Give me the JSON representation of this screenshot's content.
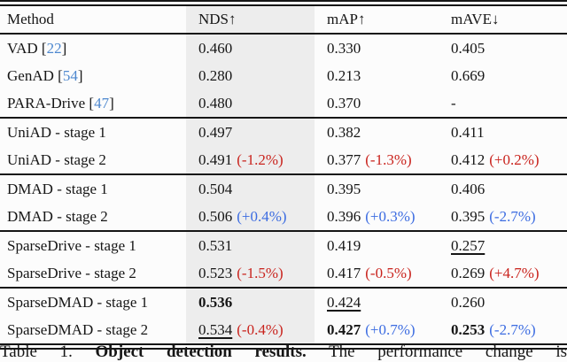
{
  "colors": {
    "background": "#fcfcfc",
    "text": "#161616",
    "highlight_column": "#ededed",
    "delta_red": "#c9231d",
    "delta_blue": "#3c6ce1",
    "citation_blue": "#4e88cf"
  },
  "table": {
    "columns": [
      {
        "label": "Method"
      },
      {
        "label": "NDS↑",
        "highlighted": true
      },
      {
        "label": "mAP↑"
      },
      {
        "label": "mAVE↓"
      }
    ],
    "citation_brackets": {
      "open": "[",
      "close": "]"
    },
    "groups": [
      {
        "rows": [
          {
            "method": {
              "name": "VAD",
              "cite": "22"
            },
            "cells": [
              {
                "v": "0.460"
              },
              {
                "v": "0.330"
              },
              {
                "v": "0.405"
              }
            ]
          },
          {
            "method": {
              "name": "GenAD",
              "cite": "54"
            },
            "cells": [
              {
                "v": "0.280"
              },
              {
                "v": "0.213"
              },
              {
                "v": "0.669"
              }
            ]
          },
          {
            "method": {
              "name": "PARA-Drive",
              "cite": "47"
            },
            "cells": [
              {
                "v": "0.480"
              },
              {
                "v": "0.370"
              },
              {
                "v": "-"
              }
            ]
          }
        ]
      },
      {
        "rows": [
          {
            "method": {
              "name": "UniAD - stage 1"
            },
            "cells": [
              {
                "v": "0.497"
              },
              {
                "v": "0.382"
              },
              {
                "v": "0.411"
              }
            ]
          },
          {
            "method": {
              "name": "UniAD - stage 2"
            },
            "cells": [
              {
                "v": "0.491",
                "delta": "(-1.2%)",
                "delta_color": "red"
              },
              {
                "v": "0.377",
                "delta": "(-1.3%)",
                "delta_color": "red"
              },
              {
                "v": "0.412",
                "delta": "(+0.2%)",
                "delta_color": "red"
              }
            ]
          }
        ]
      },
      {
        "rows": [
          {
            "method": {
              "name": "DMAD - stage 1"
            },
            "cells": [
              {
                "v": "0.504"
              },
              {
                "v": "0.395"
              },
              {
                "v": "0.406"
              }
            ]
          },
          {
            "method": {
              "name": "DMAD - stage 2"
            },
            "cells": [
              {
                "v": "0.506",
                "delta": "(+0.4%)",
                "delta_color": "blue"
              },
              {
                "v": "0.396",
                "delta": "(+0.3%)",
                "delta_color": "blue"
              },
              {
                "v": "0.395",
                "delta": "(-2.7%)",
                "delta_color": "blue"
              }
            ]
          }
        ]
      },
      {
        "rows": [
          {
            "method": {
              "name": "SparseDrive - stage 1"
            },
            "cells": [
              {
                "v": "0.531"
              },
              {
                "v": "0.419"
              },
              {
                "v": "0.257",
                "underline": true
              }
            ]
          },
          {
            "method": {
              "name": "SparseDrive - stage 2"
            },
            "cells": [
              {
                "v": "0.523",
                "delta": "(-1.5%)",
                "delta_color": "red"
              },
              {
                "v": "0.417",
                "delta": "(-0.5%)",
                "delta_color": "red"
              },
              {
                "v": "0.269",
                "delta": "(+4.7%)",
                "delta_color": "red"
              }
            ]
          }
        ]
      },
      {
        "rows": [
          {
            "method": {
              "name": "SparseDMAD - stage 1"
            },
            "cells": [
              {
                "v": "0.536",
                "bold": true
              },
              {
                "v": "0.424",
                "underline": true
              },
              {
                "v": "0.260"
              }
            ]
          },
          {
            "method": {
              "name": "SparseDMAD - stage 2"
            },
            "cells": [
              {
                "v": "0.534",
                "underline": true,
                "delta": "(-0.4%)",
                "delta_color": "red"
              },
              {
                "v": "0.427",
                "bold": true,
                "delta": "(+0.7%)",
                "delta_color": "blue"
              },
              {
                "v": "0.253",
                "bold": true,
                "delta": "(-2.7%)",
                "delta_color": "blue"
              }
            ]
          }
        ]
      }
    ]
  },
  "caption": {
    "label": "Table 1.",
    "title": "Object detection results.",
    "text": "The performance change is"
  }
}
